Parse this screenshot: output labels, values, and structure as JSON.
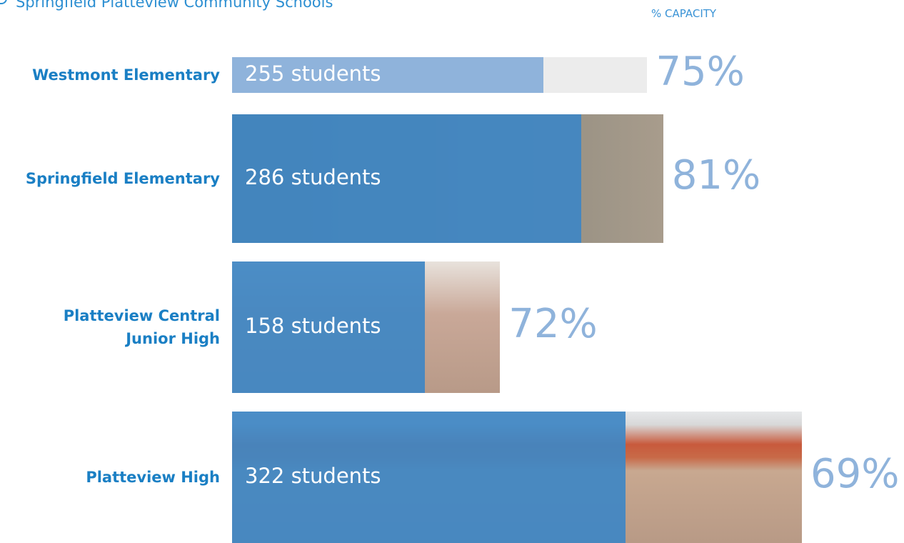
{
  "chart_data": {
    "type": "bar",
    "title": "Springfield Platteview Community Schools",
    "categories": [
      "Westmont Elementary",
      "Springfield Elementary",
      "Platteview Central Junior High",
      "Platteview High"
    ],
    "values": [
      255,
      286,
      158,
      322
    ],
    "value_labels": [
      "255 students",
      "286 students",
      "158 students",
      "322 students"
    ],
    "color": "#3f86c4",
    "capacity": {
      "title": "% CAPACITY",
      "values": [
        75,
        81,
        72,
        69
      ],
      "value_labels": [
        "75%",
        "81%",
        "72%",
        "69%"
      ],
      "color": "#8fb3db"
    }
  }
}
